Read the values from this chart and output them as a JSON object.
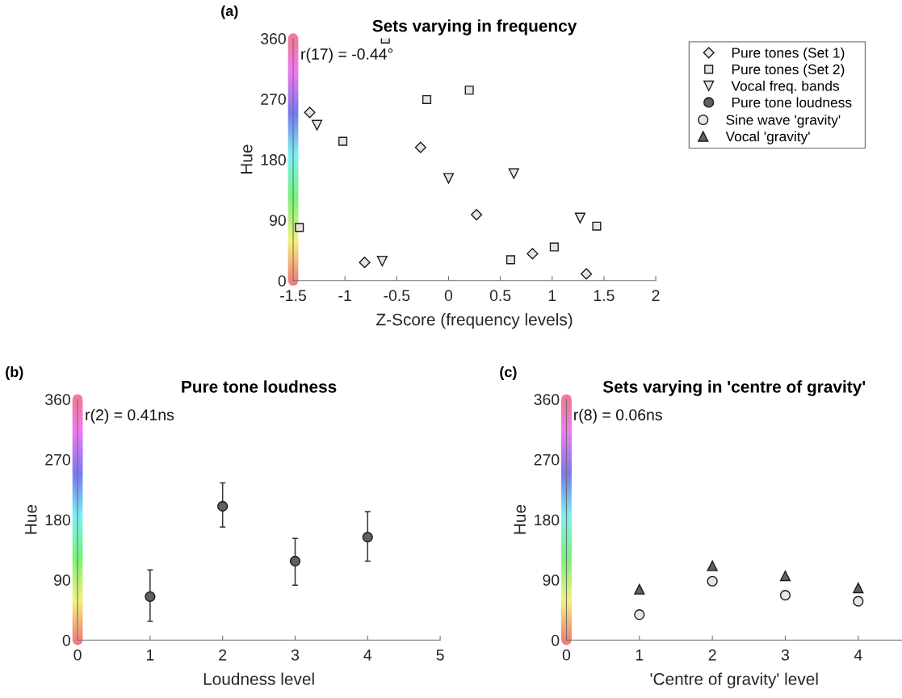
{
  "chart_data": [
    {
      "type": "scatter",
      "title": "Sets varying in frequency",
      "xlabel": "Z-Score (frequency levels)",
      "ylabel": "Hue",
      "xlim": [
        -1.5,
        2
      ],
      "xticks": [
        -1.5,
        -1,
        -0.5,
        0,
        0.5,
        1,
        1.5,
        2
      ],
      "ylim": [
        0,
        360
      ],
      "yticks": [
        0,
        90,
        180,
        270,
        360
      ],
      "grid": false,
      "legend": "right",
      "annotations": [
        "(a)",
        "r(17) = -0.44°"
      ],
      "series": [
        {
          "name": "Pure tones (Set 1)",
          "color": "#e6e6e6",
          "marker": "diamond",
          "x": [
            -1.34,
            -0.27,
            0.27,
            -0.81,
            0.81,
            1.33
          ],
          "values": [
            250,
            198,
            98,
            27,
            40,
            10
          ]
        },
        {
          "name": "Pure tones (Set 2)",
          "color": "#e6e6e6",
          "marker": "square",
          "x": [
            -0.61,
            -0.21,
            0.2,
            -1.02,
            -1.44,
            0.6,
            1.02,
            1.43
          ],
          "values": [
            359,
            269,
            283,
            207,
            79,
            31,
            50,
            81
          ]
        },
        {
          "name": "Vocal freq. bands",
          "color": "#e6e6e6",
          "marker": "triangle_down",
          "x": [
            -1.27,
            0,
            0.63,
            1.27,
            -0.64
          ],
          "values": [
            231,
            152,
            159,
            93,
            29
          ]
        }
      ]
    },
    {
      "type": "scatter",
      "title": "Pure tone loudness",
      "xlabel": "Loudness level",
      "ylabel": "Hue",
      "xlim": [
        0,
        5
      ],
      "xticks": [
        0,
        1,
        2,
        3,
        4,
        5
      ],
      "ylim": [
        0,
        360
      ],
      "yticks": [
        0,
        90,
        180,
        270,
        360
      ],
      "grid": false,
      "annotations": [
        "(b)",
        "r(2) = 0.41ns"
      ],
      "series": [
        {
          "name": "Pure tone loudness",
          "color": "#606060",
          "marker": "circle",
          "x": [
            1,
            2,
            3,
            4
          ],
          "values": [
            65,
            200,
            118,
            154
          ],
          "errors": [
            [
              28,
              105
            ],
            [
              169,
              235
            ],
            [
              82,
              152
            ],
            [
              118,
              192
            ]
          ]
        }
      ]
    },
    {
      "type": "scatter",
      "title": "Sets varying in 'centre of gravity'",
      "xlabel": "'Centre of gravity' level",
      "ylabel": "Hue",
      "xlim": [
        0,
        4.6
      ],
      "xticks": [
        0,
        1,
        2,
        3,
        4
      ],
      "ylim": [
        0,
        360
      ],
      "yticks": [
        0,
        90,
        180,
        270,
        360
      ],
      "grid": false,
      "legend": "top",
      "annotations": [
        "(c)",
        "r(8) = 0.06ns"
      ],
      "series": [
        {
          "name": "Sine wave 'gravity'",
          "color": "#e6e6e6",
          "marker": "circle",
          "x": [
            1,
            2,
            3,
            4
          ],
          "values": [
            38,
            88,
            67,
            58
          ]
        },
        {
          "name": "Vocal 'gravity'",
          "color": "#606060",
          "marker": "triangle",
          "x": [
            1,
            2,
            3,
            4
          ],
          "values": [
            76,
            111,
            96,
            78
          ]
        }
      ]
    }
  ]
}
